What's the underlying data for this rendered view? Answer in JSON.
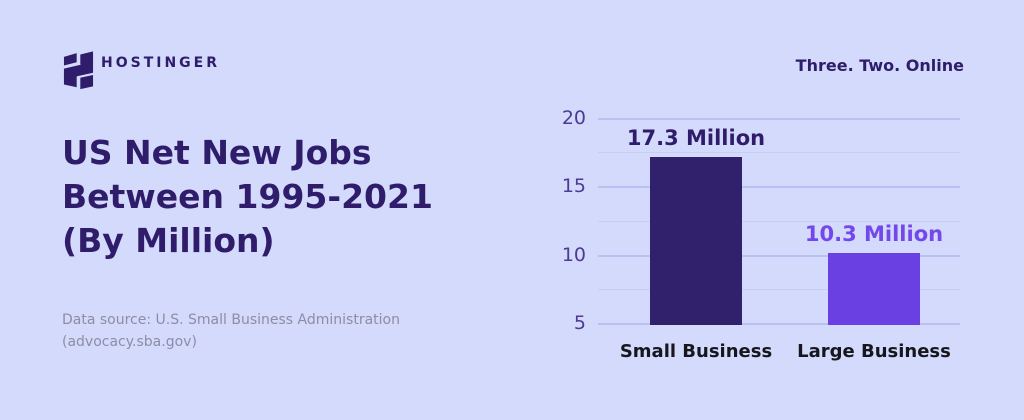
{
  "brand": {
    "logo_text": "HOSTINGER",
    "tagline": "Three. Two. Online"
  },
  "main": {
    "title_lines": [
      "US Net New Jobs",
      "Between 1995-2021",
      "(By Million)"
    ],
    "source_lines": [
      "Data source: U.S. Small Business Administration",
      "(advocacy.sba.gov)"
    ]
  },
  "chart_data": {
    "type": "bar",
    "title": "US Net New Jobs Between 1995-2021 (By Million)",
    "categories": [
      "Small Business",
      "Large Business"
    ],
    "values": [
      17.3,
      10.3
    ],
    "value_labels": [
      "17.3 Million",
      "10.3 Million"
    ],
    "bar_colors": [
      "#31206B",
      "#6B40E3"
    ],
    "value_label_colors": [
      "#2F1C6A",
      "#7347EB"
    ],
    "yticks": [
      20,
      15,
      10,
      5
    ],
    "ylim": [
      5,
      20
    ],
    "gridline_step": 2.5,
    "grid": "horizontal",
    "legend": false,
    "xlabel": "",
    "ylabel": "",
    "source": "Data source: U.S. Small Business Administration (advocacy.sba.gov)"
  },
  "colors": {
    "background": "#D3DAFB",
    "brand_dark_purple": "#2F1C6A",
    "brand_violet": "#6B40E3",
    "grid_major": "#BAC0F1",
    "grid_minor": "#C8CDF6",
    "ytick_text": "#4C3A96",
    "category_text": "#17161D",
    "source_text": "#8F8CA6"
  }
}
